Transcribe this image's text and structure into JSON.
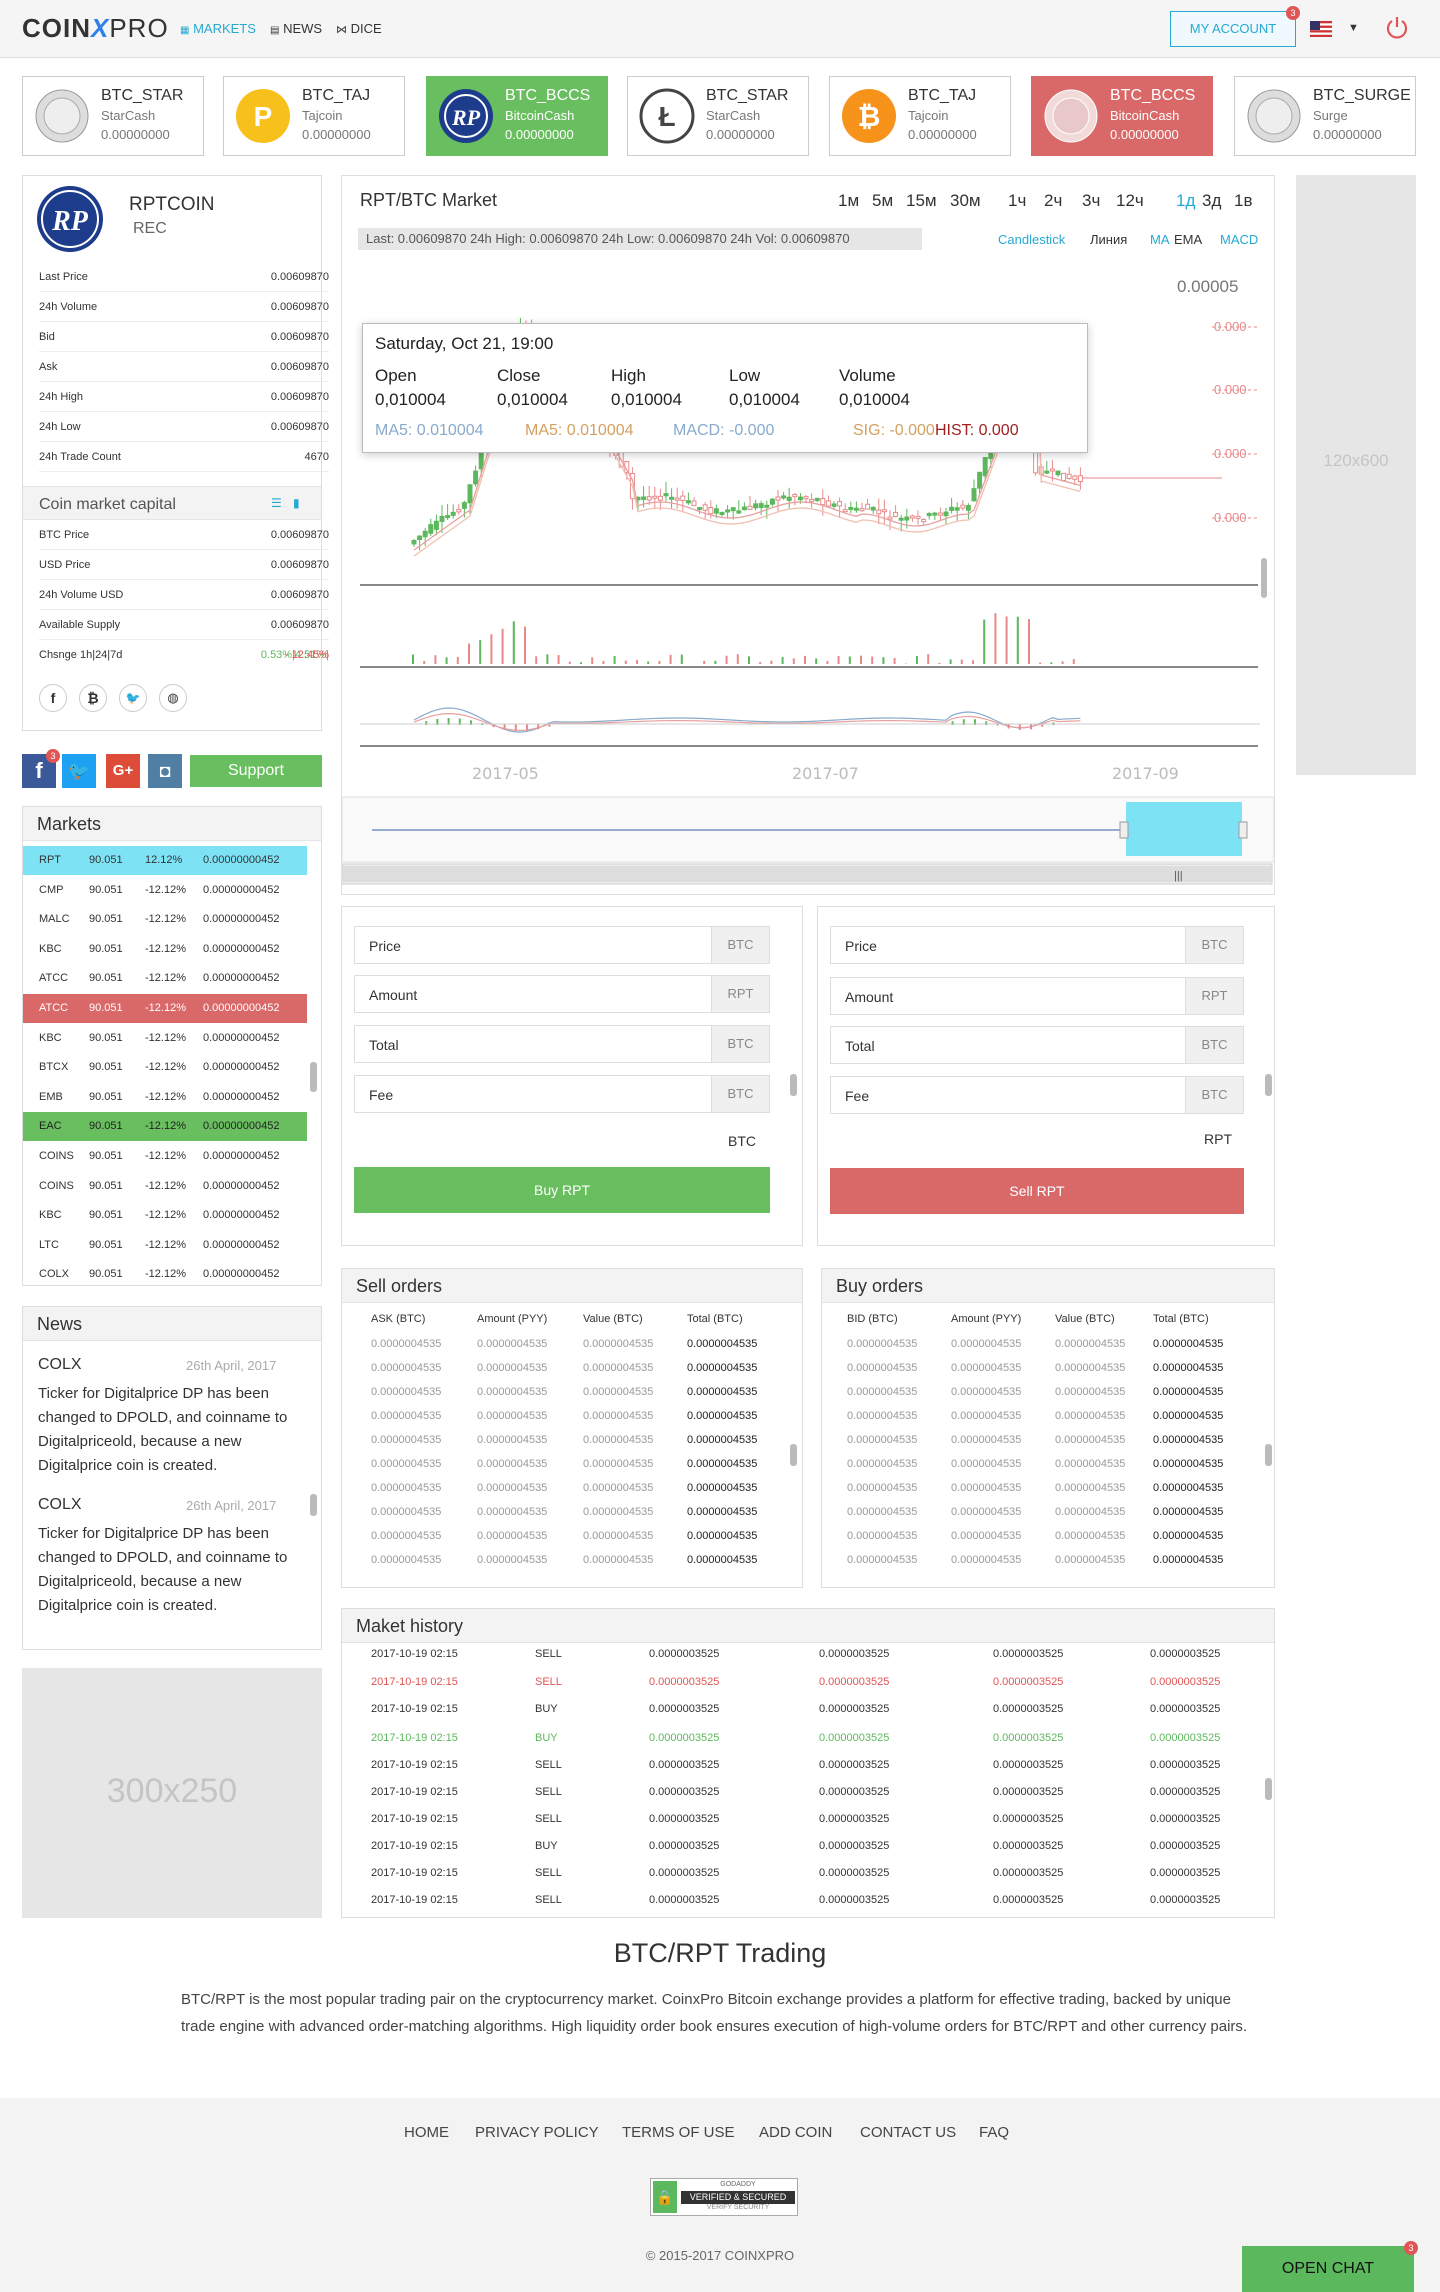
{
  "header": {
    "logo_left": "COIN",
    "logo_x": "X",
    "logo_right": "PRO",
    "nav": [
      {
        "label": "MARKETS",
        "icon": "markets-icon"
      },
      {
        "label": "NEWS",
        "icon": "news-icon"
      },
      {
        "label": "DICE",
        "icon": "dice-icon"
      }
    ],
    "account_label": "MY ACCOUNT",
    "account_badge": "3"
  },
  "coin_cards": [
    {
      "name": "BTC_STAR",
      "sub": "StarCash",
      "value": "0.00000000",
      "style": "plain",
      "icon": "starcash-coin-icon"
    },
    {
      "name": "BTC_TAJ",
      "sub": "Tajcoin",
      "value": "0.00000000",
      "style": "plain",
      "icon": "tajcoin-icon"
    },
    {
      "name": "BTC_BCCS",
      "sub": "BitcoinCash",
      "value": "0.00000000",
      "style": "green",
      "icon": "rpt-coin-icon"
    },
    {
      "name": "BTC_STAR",
      "sub": "StarCash",
      "value": "0.00000000",
      "style": "plain",
      "icon": "litecoin-icon"
    },
    {
      "name": "BTC_TAJ",
      "sub": "Tajcoin",
      "value": "0.00000000",
      "style": "plain",
      "icon": "bitcoin-icon"
    },
    {
      "name": "BTC_BCCS",
      "sub": "BitcoinCash",
      "value": "0.00000000",
      "style": "red",
      "icon": "bitcoincash-coin-icon"
    },
    {
      "name": "BTC_SURGE",
      "sub": "Surge",
      "value": "0.00000000",
      "style": "plain",
      "icon": "surge-coin-icon"
    }
  ],
  "coin_info": {
    "name": "RPTCOIN",
    "ticker": "REC",
    "stats": [
      {
        "label": "Last Price",
        "value": "0.00609870"
      },
      {
        "label": "24h Volume",
        "value": "0.00609870"
      },
      {
        "label": "Bid",
        "value": "0.00609870"
      },
      {
        "label": "Ask",
        "value": "0.00609870"
      },
      {
        "label": "24h High",
        "value": "0.00609870"
      },
      {
        "label": "24h Low",
        "value": "0.00609870"
      },
      {
        "label": "24h Trade Count",
        "value": "4670"
      }
    ],
    "cap_title": "Coin market capital",
    "cap": [
      {
        "label": "BTC Price",
        "value": "0.00609870"
      },
      {
        "label": "USD Price",
        "value": "0.00609870"
      },
      {
        "label": "24h Volume USD",
        "value": "0.00609870"
      },
      {
        "label": "Available Supply",
        "value": "0.00609870"
      }
    ],
    "change_label": "Chsnge 1h|24|7d",
    "change_green": "0.53%|4.51%|",
    "change_red": "- 12.45%"
  },
  "social": {
    "support_label": "Support",
    "fb_badge": "3"
  },
  "markets": {
    "title": "Markets",
    "rows": [
      {
        "coin": "RPT",
        "price": "90.051",
        "change": "12.12%",
        "vol": "0.00000000452",
        "style": "cyan"
      },
      {
        "coin": "CMP",
        "price": "90.051",
        "change": "-12.12%",
        "vol": "0.00000000452",
        "style": ""
      },
      {
        "coin": "MALC",
        "price": "90.051",
        "change": "-12.12%",
        "vol": "0.00000000452",
        "style": ""
      },
      {
        "coin": "KBC",
        "price": "90.051",
        "change": "-12.12%",
        "vol": "0.00000000452",
        "style": ""
      },
      {
        "coin": "ATCC",
        "price": "90.051",
        "change": "-12.12%",
        "vol": "0.00000000452",
        "style": ""
      },
      {
        "coin": "ATCC",
        "price": "90.051",
        "change": "-12.12%",
        "vol": "0.00000000452",
        "style": "red"
      },
      {
        "coin": "KBC",
        "price": "90.051",
        "change": "-12.12%",
        "vol": "0.00000000452",
        "style": ""
      },
      {
        "coin": "BTCX",
        "price": "90.051",
        "change": "-12.12%",
        "vol": "0.00000000452",
        "style": ""
      },
      {
        "coin": "EMB",
        "price": "90.051",
        "change": "-12.12%",
        "vol": "0.00000000452",
        "style": ""
      },
      {
        "coin": "EAC",
        "price": "90.051",
        "change": "-12.12%",
        "vol": "0.00000000452",
        "style": "green"
      },
      {
        "coin": "COINS",
        "price": "90.051",
        "change": "-12.12%",
        "vol": "0.00000000452",
        "style": ""
      },
      {
        "coin": "COINS",
        "price": "90.051",
        "change": "-12.12%",
        "vol": "0.00000000452",
        "style": ""
      },
      {
        "coin": "KBC",
        "price": "90.051",
        "change": "-12.12%",
        "vol": "0.00000000452",
        "style": ""
      },
      {
        "coin": "LTC",
        "price": "90.051",
        "change": "-12.12%",
        "vol": "0.00000000452",
        "style": ""
      },
      {
        "coin": "COLX",
        "price": "90.051",
        "change": "-12.12%",
        "vol": "0.00000000452",
        "style": ""
      }
    ]
  },
  "news": {
    "title": "News",
    "items": [
      {
        "coin": "COLX",
        "date": "26th April, 2017",
        "text": "Ticker for Digitalprice DP has been changed to DPOLD, and coinname to Digitalpriceold, because a new Digitalprice coin is created."
      },
      {
        "coin": "COLX",
        "date": "26th April, 2017",
        "text": "Ticker for Digitalprice DP has been changed to DPOLD, and coinname to Digitalpriceold, because a new Digitalprice coin is created."
      }
    ]
  },
  "ads": {
    "left": "300x250",
    "right": "120x600"
  },
  "chart": {
    "title": "RPT/BTC Market",
    "intervals": [
      "1м",
      "5м",
      "15м",
      "30м",
      "1ч",
      "2ч",
      "3ч",
      "12ч",
      "1д",
      "3д",
      "1в"
    ],
    "active_interval": "1д",
    "info": "Last: 0.00609870 24h High: 0.00609870 24h  Low: 0.00609870 24h  Vol: 0.00609870",
    "opts": {
      "candlestick": "Candlestick",
      "line": "Линия",
      "ma": "MA",
      "ema": "EMA",
      "macd": "MACD"
    },
    "y_top": "0.00005",
    "y_trunc": [
      "0.000",
      "0.000",
      "0.000",
      "0.000",
      "0.000"
    ],
    "x_labels": [
      "2017-05",
      "2017-07",
      "2017-09"
    ],
    "tooltip": {
      "date": "Saturday, Oct 21, 19:00",
      "cols": [
        {
          "label": "Open",
          "value": "0,010004"
        },
        {
          "label": "Close",
          "value": "0,010004"
        },
        {
          "label": "High",
          "value": "0,010004"
        },
        {
          "label": "Low",
          "value": "0,010004"
        },
        {
          "label": "Volume",
          "value": "0,010004"
        }
      ],
      "ma1": "MA5: 0.010004",
      "ma2": "MA5: 0.010004",
      "macd": "MACD: -0.000",
      "sig": "SIG: -0.000",
      "hist": "HIST: 0.000"
    },
    "colors": {
      "up": "#5cb85c",
      "down": "#e88a8a",
      "accent": "#26a9d1"
    }
  },
  "buy_form": {
    "fields": [
      {
        "label": "Price",
        "unit": "BTC"
      },
      {
        "label": "Amount",
        "unit": "RPT"
      },
      {
        "label": "Total",
        "unit": "BTC"
      },
      {
        "label": "Fee",
        "unit": "BTC"
      }
    ],
    "balance_unit": "BTC",
    "button": "Buy RPT"
  },
  "sell_form": {
    "fields": [
      {
        "label": "Price",
        "unit": "BTC"
      },
      {
        "label": "Amount",
        "unit": "RPT"
      },
      {
        "label": "Total",
        "unit": "BTC"
      },
      {
        "label": "Fee",
        "unit": "BTC"
      }
    ],
    "balance_unit": "RPT",
    "button": "Sell RPT"
  },
  "sell_orders": {
    "title": "Sell orders",
    "headers": [
      "ASK (BTC)",
      "Amount (PYY)",
      "Value (BTC)",
      "Total (BTC)"
    ],
    "rows": [
      [
        "0.0000004535",
        "0.0000004535",
        "0.0000004535",
        "0.0000004535"
      ],
      [
        "0.0000004535",
        "0.0000004535",
        "0.0000004535",
        "0.0000004535"
      ],
      [
        "0.0000004535",
        "0.0000004535",
        "0.0000004535",
        "0.0000004535"
      ],
      [
        "0.0000004535",
        "0.0000004535",
        "0.0000004535",
        "0.0000004535"
      ],
      [
        "0.0000004535",
        "0.0000004535",
        "0.0000004535",
        "0.0000004535"
      ],
      [
        "0.0000004535",
        "0.0000004535",
        "0.0000004535",
        "0.0000004535"
      ],
      [
        "0.0000004535",
        "0.0000004535",
        "0.0000004535",
        "0.0000004535"
      ],
      [
        "0.0000004535",
        "0.0000004535",
        "0.0000004535",
        "0.0000004535"
      ],
      [
        "0.0000004535",
        "0.0000004535",
        "0.0000004535",
        "0.0000004535"
      ],
      [
        "0.0000004535",
        "0.0000004535",
        "0.0000004535",
        "0.0000004535"
      ]
    ]
  },
  "buy_orders": {
    "title": "Buy orders",
    "headers": [
      "BID (BTC)",
      "Amount (PYY)",
      "Value (BTC)",
      "Total (BTC)"
    ],
    "rows": [
      [
        "0.0000004535",
        "0.0000004535",
        "0.0000004535",
        "0.0000004535"
      ],
      [
        "0.0000004535",
        "0.0000004535",
        "0.0000004535",
        "0.0000004535"
      ],
      [
        "0.0000004535",
        "0.0000004535",
        "0.0000004535",
        "0.0000004535"
      ],
      [
        "0.0000004535",
        "0.0000004535",
        "0.0000004535",
        "0.0000004535"
      ],
      [
        "0.0000004535",
        "0.0000004535",
        "0.0000004535",
        "0.0000004535"
      ],
      [
        "0.0000004535",
        "0.0000004535",
        "0.0000004535",
        "0.0000004535"
      ],
      [
        "0.0000004535",
        "0.0000004535",
        "0.0000004535",
        "0.0000004535"
      ],
      [
        "0.0000004535",
        "0.0000004535",
        "0.0000004535",
        "0.0000004535"
      ],
      [
        "0.0000004535",
        "0.0000004535",
        "0.0000004535",
        "0.0000004535"
      ],
      [
        "0.0000004535",
        "0.0000004535",
        "0.0000004535",
        "0.0000004535"
      ]
    ]
  },
  "history": {
    "title": "Maket history",
    "rows": [
      {
        "date": "2017-10-19 02:15",
        "type": "SELL",
        "c1": "0.0000003525",
        "c2": "0.0000003525",
        "c3": "0.0000003525",
        "c4": "0.0000003525",
        "style": ""
      },
      {
        "date": "2017-10-19 02:15",
        "type": "SELL",
        "c1": "0.0000003525",
        "c2": "0.0000003525",
        "c3": "0.0000003525",
        "c4": "0.0000003525",
        "style": "red"
      },
      {
        "date": "2017-10-19 02:15",
        "type": "BUY",
        "c1": "0.0000003525",
        "c2": "0.0000003525",
        "c3": "0.0000003525",
        "c4": "0.0000003525",
        "style": ""
      },
      {
        "date": "2017-10-19 02:15",
        "type": "BUY",
        "c1": "0.0000003525",
        "c2": "0.0000003525",
        "c3": "0.0000003525",
        "c4": "0.0000003525",
        "style": "green"
      },
      {
        "date": "2017-10-19 02:15",
        "type": "SELL",
        "c1": "0.0000003525",
        "c2": "0.0000003525",
        "c3": "0.0000003525",
        "c4": "0.0000003525",
        "style": ""
      },
      {
        "date": "2017-10-19 02:15",
        "type": "SELL",
        "c1": "0.0000003525",
        "c2": "0.0000003525",
        "c3": "0.0000003525",
        "c4": "0.0000003525",
        "style": ""
      },
      {
        "date": "2017-10-19 02:15",
        "type": "SELL",
        "c1": "0.0000003525",
        "c2": "0.0000003525",
        "c3": "0.0000003525",
        "c4": "0.0000003525",
        "style": ""
      },
      {
        "date": "2017-10-19 02:15",
        "type": "BUY",
        "c1": "0.0000003525",
        "c2": "0.0000003525",
        "c3": "0.0000003525",
        "c4": "0.0000003525",
        "style": ""
      },
      {
        "date": "2017-10-19 02:15",
        "type": "SELL",
        "c1": "0.0000003525",
        "c2": "0.0000003525",
        "c3": "0.0000003525",
        "c4": "0.0000003525",
        "style": ""
      },
      {
        "date": "2017-10-19 02:15",
        "type": "SELL",
        "c1": "0.0000003525",
        "c2": "0.0000003525",
        "c3": "0.0000003525",
        "c4": "0.0000003525",
        "style": ""
      }
    ]
  },
  "trading": {
    "title": "BTC/RPT Trading",
    "text": "BTC/RPT is the most popular trading pair on the cryptocurrency market. CoinxPro Bitcoin exchange provides a platform for effective trading, backed by unique trade engine with advanced order-matching algorithms. High liquidity order book ensures execution of high-volume orders for BTC/RPT and other currency pairs."
  },
  "footer": {
    "links": [
      "HOME",
      "PRIVACY POLICY",
      "TERMS OF USE",
      "ADD COIN",
      "CONTACT US",
      "FAQ"
    ],
    "seal_top": "GODADDY",
    "seal_main": "VERIFIED & SECURED",
    "seal_bottom": "VERIFY SECURITY",
    "copyright": "© 2015-2017 COINXPRO",
    "chat_label": "OPEN CHAT",
    "chat_badge": "3"
  }
}
